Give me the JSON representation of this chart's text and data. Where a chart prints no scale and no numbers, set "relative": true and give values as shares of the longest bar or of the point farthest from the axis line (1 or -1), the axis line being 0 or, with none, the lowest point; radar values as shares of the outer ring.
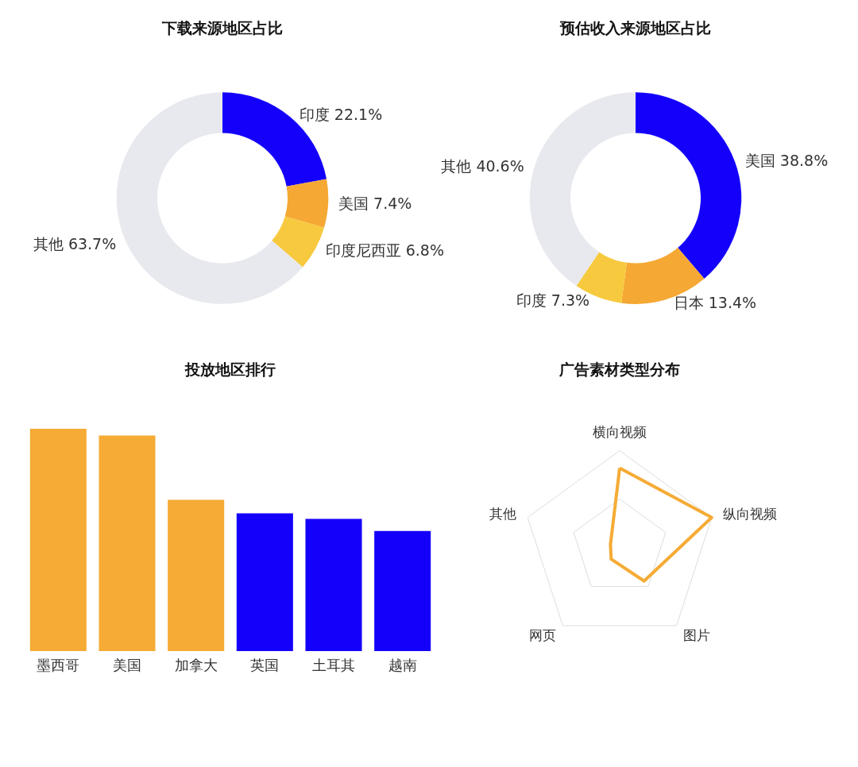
{
  "chart_data": [
    {
      "type": "donut",
      "title": "下载来源地区占比",
      "categories": [
        "印度",
        "美国",
        "印度尼西亚",
        "其他"
      ],
      "values": [
        22.1,
        7.4,
        6.8,
        63.7
      ],
      "value_labels": [
        "22.1%",
        "7.4%",
        "6.8%",
        "63.7%"
      ],
      "colors": [
        "#1400fa",
        "#f5a833",
        "#f7c93e",
        "#e8e9ee"
      ]
    },
    {
      "type": "donut",
      "title": "预估收入来源地区占比",
      "categories": [
        "美国",
        "日本",
        "印度",
        "其他"
      ],
      "values": [
        38.8,
        13.4,
        7.3,
        40.6
      ],
      "value_labels": [
        "38.8%",
        "13.4%",
        "7.3%",
        "40.6%"
      ],
      "colors": [
        "#1400fa",
        "#f5a833",
        "#f7c93e",
        "#e8e9ee"
      ]
    },
    {
      "type": "bar",
      "title": "投放地区排行",
      "relative": true,
      "categories": [
        "墨西哥",
        "美国",
        "加拿大",
        "英国",
        "土耳其",
        "越南"
      ],
      "values": [
        1,
        0.97,
        0.68,
        0.62,
        0.595,
        0.54
      ],
      "colors": [
        "#f5ab35",
        "#f5ab35",
        "#f5ab35",
        "#1400fa",
        "#1400fa",
        "#1400fa"
      ]
    },
    {
      "type": "radar",
      "title": "广告素材类型分布",
      "relative": true,
      "marker": "none",
      "categories": [
        "横向视频",
        "纵向视频",
        "图片",
        "网页",
        "其他"
      ],
      "series": [
        {
          "color": "#f5ab35",
          "values": [
            0.82,
            1,
            0.43,
            0.15,
            0.1
          ]
        }
      ]
    }
  ]
}
